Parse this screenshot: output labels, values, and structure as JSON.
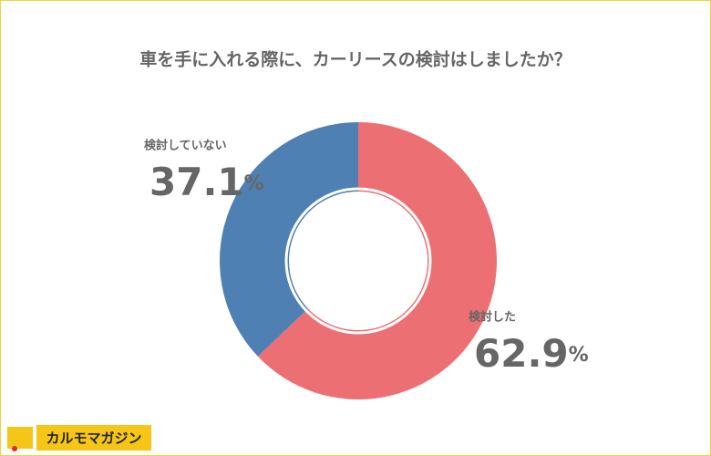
{
  "chart_data": {
    "type": "pie",
    "title": "車を手に入れる際に、カーリースの検討はしましたか？",
    "categories": [
      "検討した",
      "検討していない"
    ],
    "values": [
      62.9,
      37.1
    ],
    "value_labels": [
      "62.9%",
      "37.1%"
    ],
    "colors": [
      "#ec6f73",
      "#4e80b4"
    ],
    "start_angle": "top",
    "direction": "clockwise"
  },
  "logo": "カルモマガジン"
}
